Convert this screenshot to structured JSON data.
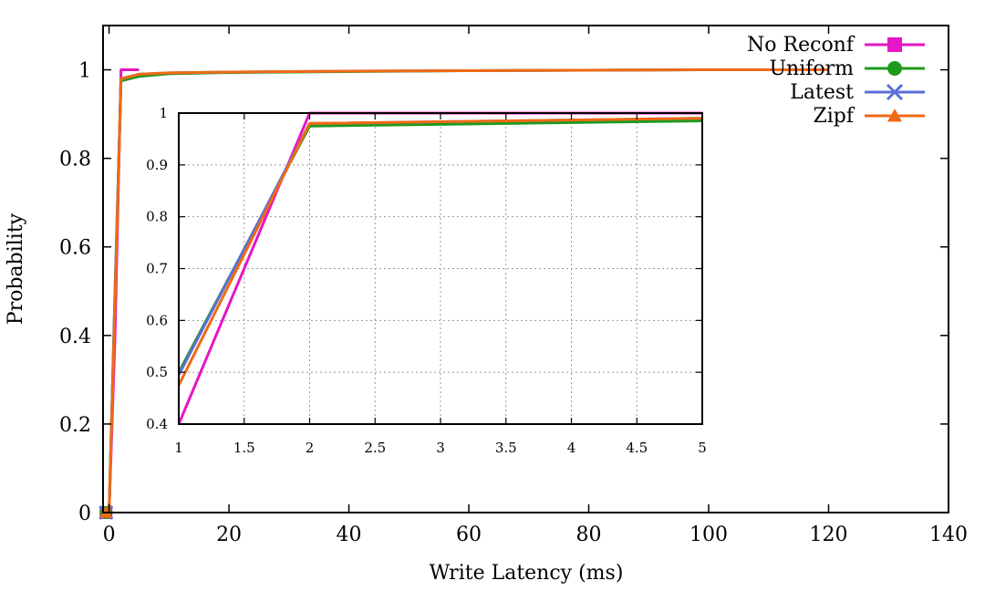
{
  "chart_data": [
    {
      "type": "line",
      "role": "main",
      "xlabel": "Write Latency (ms)",
      "ylabel": "Probability",
      "xlim": [
        -1,
        140
      ],
      "ylim": [
        0,
        1.1
      ],
      "xticks": [
        0,
        20,
        40,
        60,
        80,
        100,
        120,
        140
      ],
      "yticks": [
        0,
        0.2,
        0.4,
        0.6,
        0.8,
        1
      ],
      "ytick_labels": [
        "0",
        "0.2",
        "0.4",
        "0.6",
        "0.8",
        "1"
      ],
      "grid": false,
      "legend_position": "top-right",
      "series": [
        {
          "name": "No Reconf",
          "color": "#e516c5",
          "marker": "square",
          "points": [
            [
              -0.5,
              0
            ],
            [
              0,
              0
            ],
            [
              1,
              0.4
            ],
            [
              2,
              1
            ],
            [
              5,
              1
            ]
          ]
        },
        {
          "name": "Uniform",
          "color": "#1e9a1e",
          "marker": "circle",
          "points": [
            [
              -0.5,
              0
            ],
            [
              0,
              0
            ],
            [
              1,
              0.5
            ],
            [
              2,
              0.975
            ],
            [
              5,
              0.985
            ],
            [
              10,
              0.991
            ],
            [
              20,
              0.994
            ],
            [
              40,
              0.996
            ],
            [
              60,
              0.998
            ],
            [
              80,
              0.999
            ],
            [
              100,
              1
            ],
            [
              120,
              1
            ]
          ]
        },
        {
          "name": "Latest",
          "color": "#5b6ed8",
          "marker": "x",
          "points": [
            [
              -0.5,
              0
            ],
            [
              0,
              0
            ],
            [
              1,
              0.495
            ],
            [
              2,
              0.98
            ],
            [
              5,
              0.99
            ],
            [
              10,
              0.993
            ],
            [
              20,
              0.995
            ],
            [
              40,
              0.997
            ],
            [
              60,
              0.998
            ],
            [
              80,
              0.999
            ],
            [
              100,
              1
            ],
            [
              120,
              1
            ]
          ]
        },
        {
          "name": "Zipf",
          "color": "#f06a14",
          "marker": "triangle",
          "points": [
            [
              -0.5,
              0
            ],
            [
              0,
              0
            ],
            [
              1,
              0.475
            ],
            [
              2,
              0.98
            ],
            [
              5,
              0.99
            ],
            [
              10,
              0.993
            ],
            [
              20,
              0.995
            ],
            [
              40,
              0.997
            ],
            [
              60,
              0.998
            ],
            [
              80,
              0.999
            ],
            [
              100,
              1
            ],
            [
              120,
              1
            ]
          ]
        }
      ]
    },
    {
      "type": "line",
      "role": "inset",
      "xlim": [
        1,
        5
      ],
      "ylim": [
        0.4,
        1
      ],
      "xticks": [
        1,
        1.5,
        2,
        2.5,
        3,
        3.5,
        4,
        4.5,
        5
      ],
      "xtick_labels": [
        "1",
        "1.5",
        "2",
        "2.5",
        "3",
        "3.5",
        "4",
        "4.5",
        "5"
      ],
      "yticks": [
        0.4,
        0.5,
        0.6,
        0.7,
        0.8,
        0.9,
        1
      ],
      "ytick_labels": [
        "0.4",
        "0.5",
        "0.6",
        "0.7",
        "0.8",
        "0.9",
        "1"
      ],
      "grid": true,
      "series": [
        {
          "name": "No Reconf",
          "color": "#e516c5",
          "points": [
            [
              1,
              0.4
            ],
            [
              2,
              1
            ],
            [
              5,
              1
            ]
          ]
        },
        {
          "name": "Uniform",
          "color": "#1e9a1e",
          "points": [
            [
              1,
              0.5
            ],
            [
              2,
              0.975
            ],
            [
              5,
              0.985
            ]
          ]
        },
        {
          "name": "Latest",
          "color": "#5b6ed8",
          "points": [
            [
              1,
              0.495
            ],
            [
              2,
              0.98
            ],
            [
              5,
              0.99
            ]
          ]
        },
        {
          "name": "Zipf",
          "color": "#f06a14",
          "points": [
            [
              1,
              0.475
            ],
            [
              2,
              0.98
            ],
            [
              5,
              0.99
            ]
          ]
        }
      ]
    }
  ]
}
